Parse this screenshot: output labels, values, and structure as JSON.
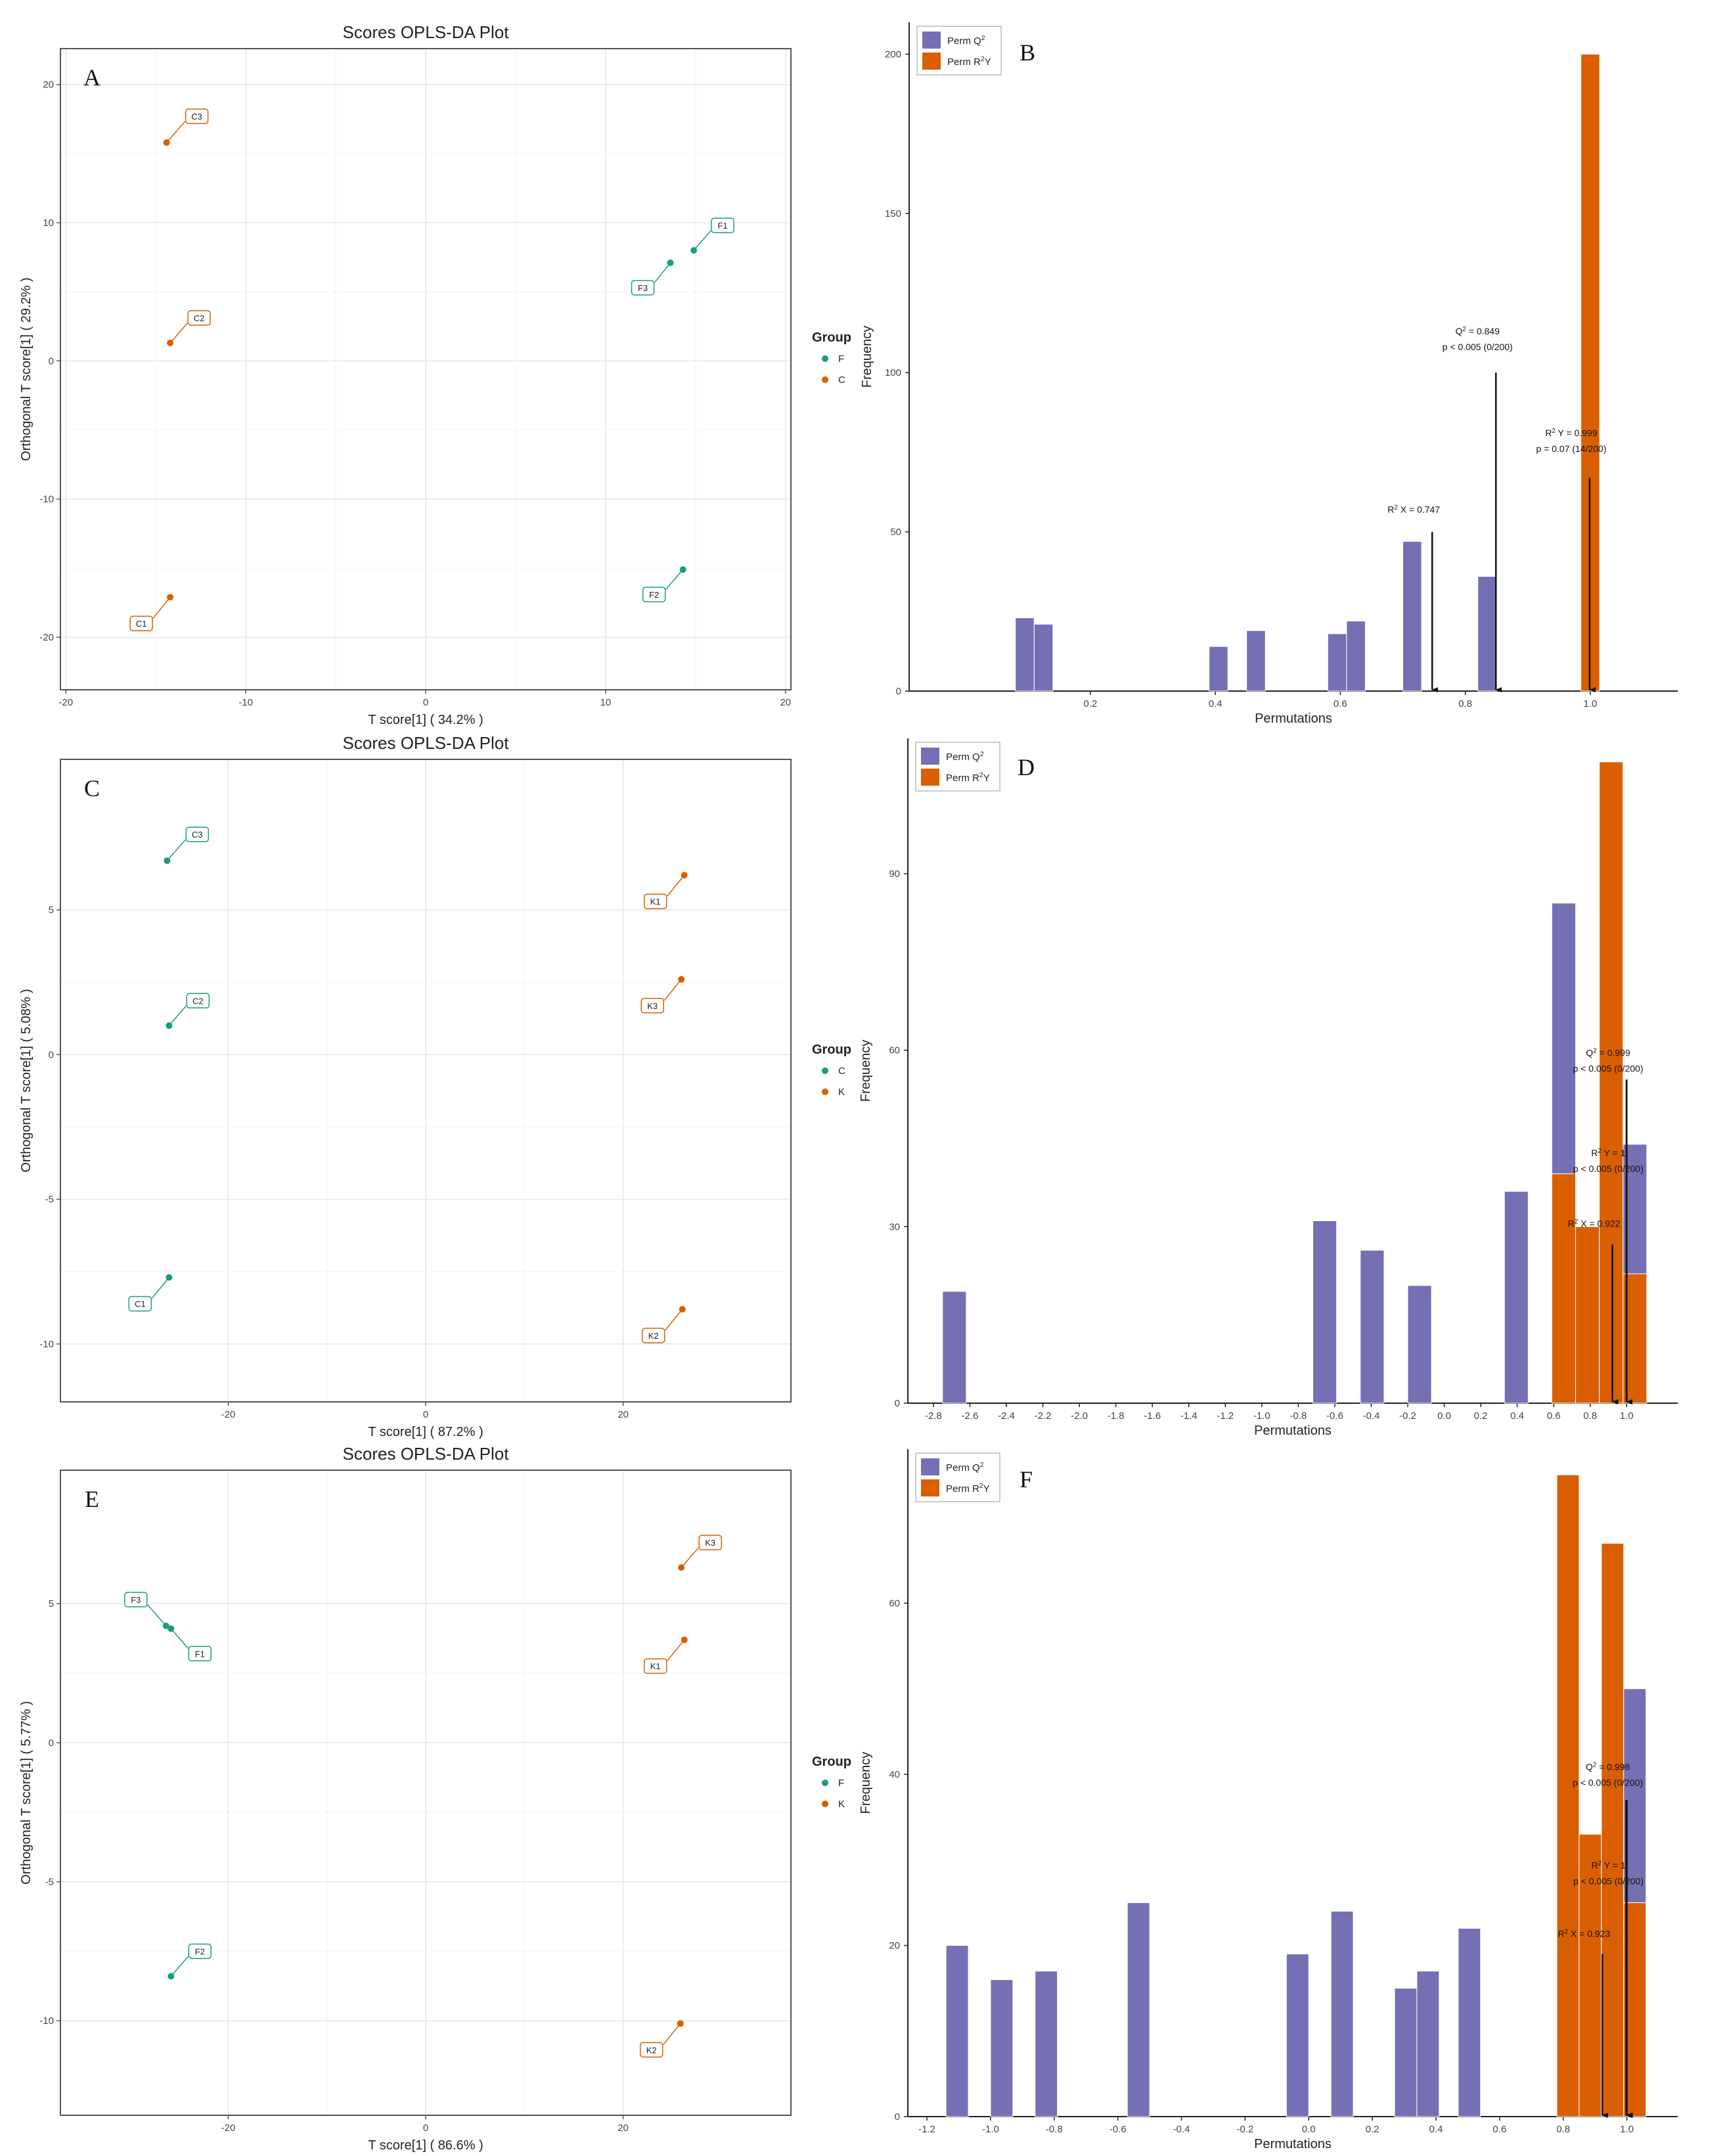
{
  "colors": {
    "green": "#1b9e77",
    "orange": "#d95f02",
    "purple": "#7570b3",
    "grid": "#e6e6e6",
    "arrow": "#111111"
  },
  "chart_data": [
    {
      "panel": "A",
      "type": "scatter",
      "title": "Scores OPLS-DA Plot",
      "xlabel": "T score[1] ( 34.2% )",
      "ylabel": "Orthogonal T score[1] ( 29.2% )",
      "xlim": [
        -20.3,
        20.3
      ],
      "ylim": [
        -23.8,
        22.6
      ],
      "xticks": [
        -20,
        -10,
        0,
        10,
        20
      ],
      "yticks": [
        -20,
        -10,
        0,
        10,
        20
      ],
      "legend_title": "Group",
      "groups": [
        {
          "name": "F",
          "color": "green"
        },
        {
          "name": "C",
          "color": "orange"
        }
      ],
      "points": [
        {
          "label": "C3",
          "group": "C",
          "x": -14.4,
          "y": 15.8
        },
        {
          "label": "C2",
          "group": "C",
          "x": -14.2,
          "y": 1.3
        },
        {
          "label": "C1",
          "group": "C",
          "x": -14.2,
          "y": -17.1
        },
        {
          "label": "F1",
          "group": "F",
          "x": 14.9,
          "y": 8.0
        },
        {
          "label": "F3",
          "group": "F",
          "x": 13.6,
          "y": 7.1
        },
        {
          "label": "F2",
          "group": "F",
          "x": 14.3,
          "y": -15.1
        }
      ]
    },
    {
      "panel": "B",
      "type": "bar",
      "xlabel": "Permutations",
      "ylabel": "Frequency",
      "xlim": [
        -0.09,
        1.14
      ],
      "ylim": [
        0,
        210
      ],
      "xticks": [
        0.2,
        0.4,
        0.6,
        0.8,
        1.0
      ],
      "xtick_labels": [
        "0.2",
        "0.4",
        "0.6",
        "0.8",
        "1.0"
      ],
      "yticks": [
        0,
        50,
        100,
        150,
        200
      ],
      "legend": [
        "Perm Q²",
        "Perm R²Y"
      ],
      "series": [
        {
          "name": "Perm Q²",
          "color": "purple",
          "bars": [
            {
              "x0": 0.08,
              "x1": 0.11,
              "value": 23
            },
            {
              "x0": 0.11,
              "x1": 0.14,
              "value": 21
            },
            {
              "x0": 0.39,
              "x1": 0.42,
              "value": 14
            },
            {
              "x0": 0.45,
              "x1": 0.48,
              "value": 19
            },
            {
              "x0": 0.58,
              "x1": 0.61,
              "value": 18
            },
            {
              "x0": 0.61,
              "x1": 0.64,
              "value": 22
            },
            {
              "x0": 0.7,
              "x1": 0.73,
              "value": 47
            },
            {
              "x0": 0.82,
              "x1": 0.85,
              "value": 36
            }
          ]
        },
        {
          "name": "Perm R²Y",
          "color": "orange",
          "bars": [
            {
              "x0": 0.985,
              "x1": 1.015,
              "value": 200
            }
          ]
        }
      ],
      "annotations": [
        {
          "lines": [
            "Q² = 0.849",
            "p < 0.005 (0/200)"
          ],
          "x": 0.849,
          "arrow_top": 100,
          "text_y": 112
        },
        {
          "lines": [
            "R² Y = 0.999",
            "p = 0.07 (14/200)"
          ],
          "x": 0.999,
          "arrow_top": 67,
          "text_y": 80
        },
        {
          "lines": [
            "R² X = 0.747"
          ],
          "x": 0.747,
          "arrow_top": 50,
          "text_y": 56
        }
      ]
    },
    {
      "panel": "C",
      "type": "scatter",
      "title": "Scores OPLS-DA Plot",
      "xlabel": "T score[1] ( 87.2% )",
      "ylabel": "Orthogonal T score[1] ( 5.08% )",
      "xlim": [
        -37,
        37
      ],
      "ylim": [
        -12,
        10.2
      ],
      "xticks": [
        -20,
        0,
        20
      ],
      "yticks": [
        -10,
        -5,
        0,
        5
      ],
      "legend_title": "Group",
      "groups": [
        {
          "name": "C",
          "color": "green"
        },
        {
          "name": "K",
          "color": "orange"
        }
      ],
      "points": [
        {
          "label": "C3",
          "group": "C",
          "x": -26.2,
          "y": 6.7
        },
        {
          "label": "C2",
          "group": "C",
          "x": -26.0,
          "y": 1.0
        },
        {
          "label": "C1",
          "group": "C",
          "x": -26.0,
          "y": -7.7
        },
        {
          "label": "K1",
          "group": "K",
          "x": 26.2,
          "y": 6.2
        },
        {
          "label": "K3",
          "group": "K",
          "x": 25.9,
          "y": 2.6
        },
        {
          "label": "K2",
          "group": "K",
          "x": 26.0,
          "y": -8.8
        }
      ]
    },
    {
      "panel": "D",
      "type": "bar",
      "xlabel": "Permutations",
      "ylabel": "Frequency",
      "xlim": [
        -2.94,
        1.28
      ],
      "ylim": [
        0,
        113
      ],
      "xticks": [
        -2.8,
        -2.6,
        -2.4,
        -2.2,
        -2.0,
        -1.8,
        -1.6,
        -1.4,
        -1.2,
        -1.0,
        -0.8,
        -0.6,
        -0.4,
        -0.2,
        0.0,
        0.2,
        0.4,
        0.6,
        0.8,
        1.0
      ],
      "xtick_labels": [
        "-2.8",
        "-2.6",
        "-2.4",
        "-2.2",
        "-2.0",
        "-1.8",
        "-1.6",
        "-1.4",
        "-1.2",
        "-1.0",
        "-0.8",
        "-0.6",
        "-0.4",
        "-0.2",
        "0.0",
        "0.2",
        "0.4",
        "0.6",
        "0.8",
        "1.0"
      ],
      "yticks": [
        0,
        30,
        60,
        90
      ],
      "legend": [
        "Perm Q²",
        "Perm R²Y"
      ],
      "series": [
        {
          "name": "Perm Q²",
          "color": "purple",
          "bars": [
            {
              "x0": -2.75,
              "x1": -2.62,
              "value": 19
            },
            {
              "x0": -0.72,
              "x1": -0.59,
              "value": 31
            },
            {
              "x0": -0.46,
              "x1": -0.33,
              "value": 26
            },
            {
              "x0": -0.2,
              "x1": -0.07,
              "value": 20
            },
            {
              "x0": 0.33,
              "x1": 0.46,
              "value": 36
            },
            {
              "x0": 0.59,
              "x1": 0.72,
              "value": 85
            },
            {
              "x0": 0.98,
              "x1": 1.11,
              "value": 44
            }
          ]
        },
        {
          "name": "Perm R²Y",
          "color": "orange",
          "bars": [
            {
              "x0": 0.59,
              "x1": 0.72,
              "value": 39
            },
            {
              "x0": 0.72,
              "x1": 0.85,
              "value": 30
            },
            {
              "x0": 0.85,
              "x1": 0.98,
              "value": 109
            },
            {
              "x0": 0.98,
              "x1": 1.11,
              "value": 22
            }
          ]
        }
      ],
      "annotations": [
        {
          "lines": [
            "Q² = 0.999",
            "p < 0.005 (0/200)"
          ],
          "x": 0.999,
          "arrow_top": 55,
          "text_y": 59
        },
        {
          "lines": [
            "R² Y = 1",
            "p < 0.005 (0/200)"
          ],
          "x": 1.0,
          "arrow_top": 55,
          "text_y": 42
        },
        {
          "lines": [
            "R² X = 0.922"
          ],
          "x": 0.922,
          "arrow_top": 27,
          "text_y": 30
        }
      ]
    },
    {
      "panel": "E",
      "type": "scatter",
      "title": "Scores OPLS-DA Plot",
      "xlabel": "T score[1] ( 86.6% )",
      "ylabel": "Orthogonal T score[1] ( 5.77% )",
      "xlim": [
        -37,
        37
      ],
      "ylim": [
        -13.4,
        9.8
      ],
      "xticks": [
        -20,
        0,
        20
      ],
      "yticks": [
        -10,
        -5,
        0,
        5
      ],
      "legend_title": "Group",
      "groups": [
        {
          "name": "F",
          "color": "green"
        },
        {
          "name": "K",
          "color": "orange"
        }
      ],
      "points": [
        {
          "label": "F3",
          "group": "F",
          "x": -26.3,
          "y": 4.2
        },
        {
          "label": "F1",
          "group": "F",
          "x": -25.8,
          "y": 4.1
        },
        {
          "label": "F2",
          "group": "F",
          "x": -25.8,
          "y": -8.4
        },
        {
          "label": "K3",
          "group": "K",
          "x": 25.9,
          "y": 6.3
        },
        {
          "label": "K1",
          "group": "K",
          "x": 26.2,
          "y": 3.7
        },
        {
          "label": "K2",
          "group": "K",
          "x": 25.8,
          "y": -10.1
        }
      ]
    },
    {
      "panel": "F",
      "type": "bar",
      "xlabel": "Permutations",
      "ylabel": "Frequency",
      "xlim": [
        -1.26,
        1.16
      ],
      "ylim": [
        0,
        78
      ],
      "xticks": [
        -1.2,
        -1.0,
        -0.8,
        -0.6,
        -0.4,
        -0.2,
        0.0,
        0.2,
        0.4,
        0.6,
        0.8,
        1.0
      ],
      "xtick_labels": [
        "-1.2",
        "-1.0",
        "-0.8",
        "-0.6",
        "-0.4",
        "-0.2",
        "0.0",
        "0.2",
        "0.4",
        "0.6",
        "0.8",
        "1.0"
      ],
      "yticks": [
        0,
        20,
        40,
        60
      ],
      "legend": [
        "Perm Q²",
        "Perm R²Y"
      ],
      "series": [
        {
          "name": "Perm Q²",
          "color": "purple",
          "bars": [
            {
              "x0": -1.14,
              "x1": -1.07,
              "value": 20
            },
            {
              "x0": -1.0,
              "x1": -0.93,
              "value": 16
            },
            {
              "x0": -0.86,
              "x1": -0.79,
              "value": 17
            },
            {
              "x0": -0.57,
              "x1": -0.5,
              "value": 25
            },
            {
              "x0": -0.07,
              "x1": 0.0,
              "value": 19
            },
            {
              "x0": 0.07,
              "x1": 0.14,
              "value": 24
            },
            {
              "x0": 0.27,
              "x1": 0.34,
              "value": 15
            },
            {
              "x0": 0.34,
              "x1": 0.41,
              "value": 17
            },
            {
              "x0": 0.47,
              "x1": 0.54,
              "value": 22
            },
            {
              "x0": 0.99,
              "x1": 1.06,
              "value": 50
            }
          ]
        },
        {
          "name": "Perm R²Y",
          "color": "orange",
          "bars": [
            {
              "x0": 0.78,
              "x1": 0.85,
              "value": 75
            },
            {
              "x0": 0.85,
              "x1": 0.92,
              "value": 33
            },
            {
              "x0": 0.92,
              "x1": 0.99,
              "value": 67
            },
            {
              "x0": 0.99,
              "x1": 1.06,
              "value": 25
            }
          ]
        }
      ],
      "annotations": [
        {
          "lines": [
            "Q² = 0.998",
            "p < 0.005 (0/200)"
          ],
          "x": 0.998,
          "arrow_top": 37,
          "text_y": 40.5
        },
        {
          "lines": [
            "R² Y = 1",
            "p < 0.005 (0/200)"
          ],
          "x": 1.0,
          "arrow_top": 37,
          "text_y": 29
        },
        {
          "lines": [
            "R² X = 0.923"
          ],
          "x": 0.923,
          "arrow_top": 19,
          "text_y": 21
        }
      ]
    }
  ]
}
